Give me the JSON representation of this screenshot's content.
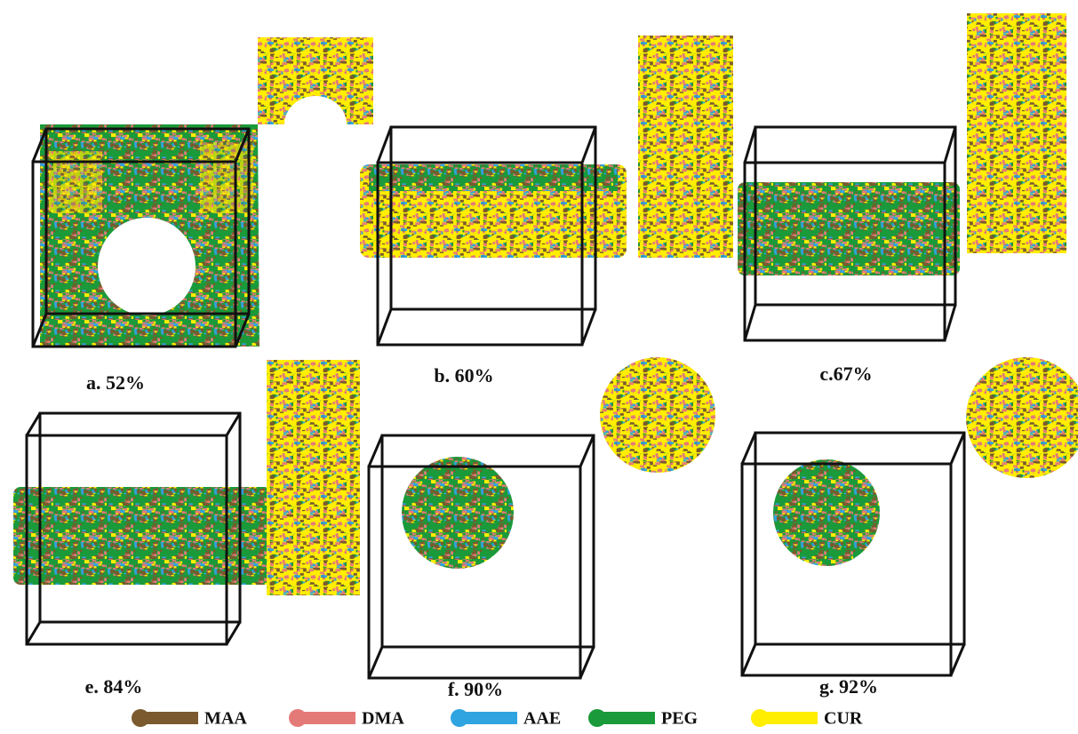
{
  "panels": [
    {
      "label": "a. 52%"
    },
    {
      "label": "b. 60%"
    },
    {
      "label": "c.67%"
    },
    {
      "label": "e. 84%"
    },
    {
      "label": "f. 90%"
    },
    {
      "label": "g. 92%"
    }
  ],
  "legend": [
    {
      "name": "MAA",
      "color": "#7a5a2e"
    },
    {
      "name": "DMA",
      "color": "#e47a78"
    },
    {
      "name": "AAE",
      "color": "#2fa4e0"
    },
    {
      "name": "PEG",
      "color": "#1a9a3a"
    },
    {
      "name": "CUR",
      "color": "#ffee00"
    }
  ]
}
